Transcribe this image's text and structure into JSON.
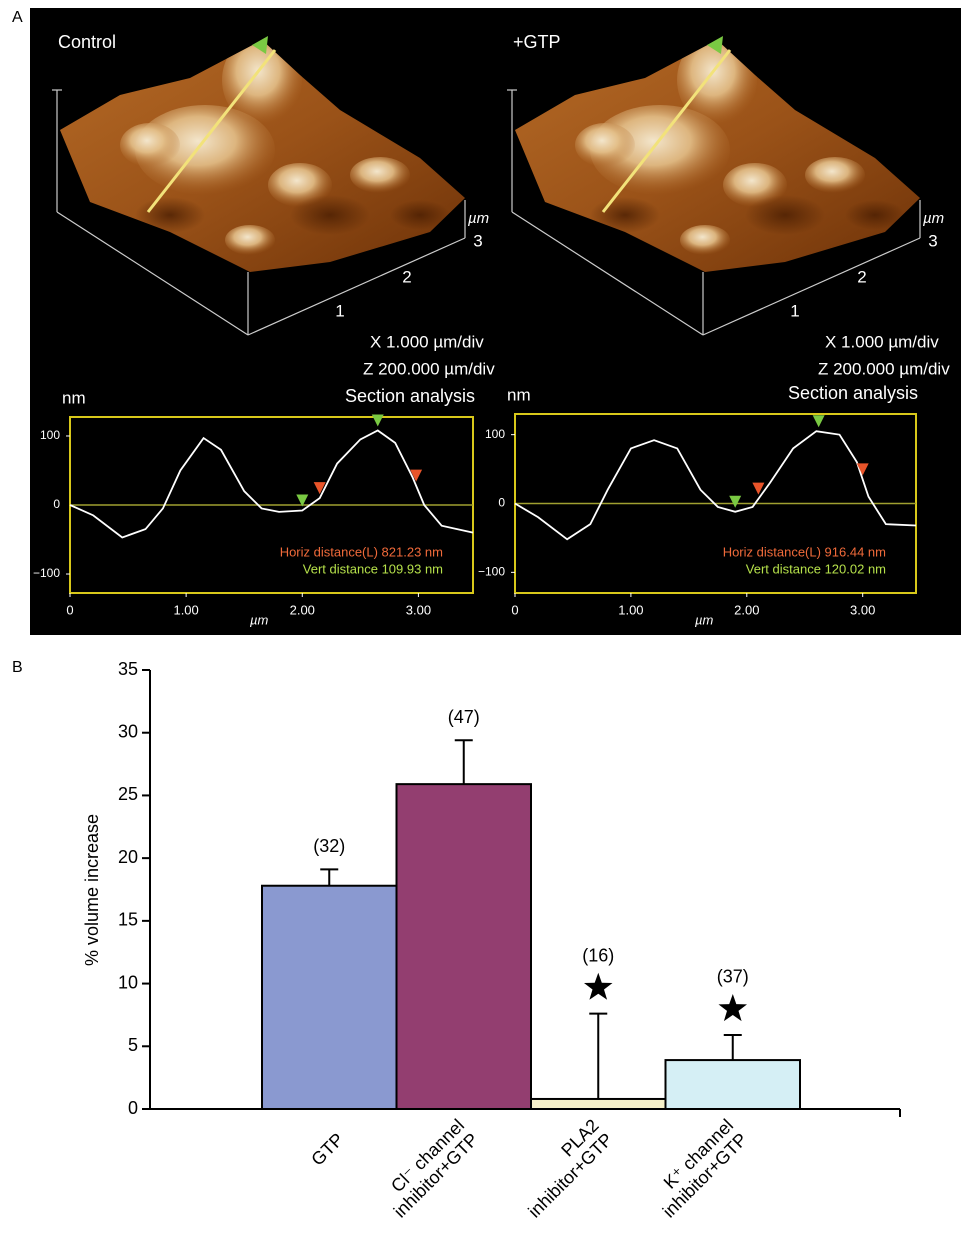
{
  "panel_labels": [
    "A",
    "B"
  ],
  "afm_images": [
    {
      "label": "Control",
      "axis_unit": "µm",
      "axis_ticks": [
        "1",
        "2",
        "3"
      ],
      "scale_x": "X 1.000 µm/div",
      "scale_z": "Z 200.000 µm/div"
    },
    {
      "label": "+GTP",
      "axis_unit": "µm",
      "axis_ticks": [
        "1",
        "2",
        "3"
      ],
      "scale_x": "X 1.000 µm/div",
      "scale_z": "Z 200.000 µm/div"
    }
  ],
  "chart_data": [
    {
      "type": "line",
      "title": "Section analysis",
      "ylabel": "nm",
      "xlabel": "µm",
      "color": "#ffffff",
      "x": [
        0,
        0.2,
        0.45,
        0.65,
        0.8,
        0.95,
        1.15,
        1.3,
        1.5,
        1.65,
        1.8,
        2.0,
        2.15,
        2.3,
        2.5,
        2.65,
        2.8,
        2.95,
        3.05,
        3.2,
        3.47
      ],
      "values": [
        0,
        -15,
        -47,
        -35,
        -5,
        50,
        97,
        80,
        20,
        -5,
        -10,
        -8,
        10,
        60,
        95,
        108,
        90,
        40,
        0,
        -30,
        -40
      ],
      "xlim": [
        0,
        3.47
      ],
      "ylim": [
        -127.5,
        127.5
      ],
      "xticks": [
        0,
        {
          "value": 1,
          "label": "1.00"
        },
        {
          "value": 2,
          "label": "2.00"
        },
        {
          "value": 3,
          "label": "3.00"
        }
      ],
      "yticks": [
        {
          "value": -100,
          "label": "−100"
        },
        0,
        100
      ],
      "frame_color": "#d8c81a",
      "zero_line_color": "#a0a030",
      "markers": {
        "x": [
          2.0,
          2.65,
          2.15,
          2.98
        ],
        "y": [
          -8,
          108,
          10,
          28
        ],
        "colors": [
          "#7ac943",
          "#7ac943",
          "#e8542a",
          "#e8542a"
        ]
      },
      "annotations": [
        {
          "text": "Horiz distance(L) 821.23 nm",
          "color": "#f06a3a"
        },
        {
          "text": "Vert distance 109.93 nm",
          "color": "#b5e04a"
        }
      ]
    },
    {
      "type": "line",
      "title": "Section analysis",
      "ylabel": "nm",
      "xlabel": "µm",
      "color": "#ffffff",
      "x": [
        0,
        0.2,
        0.45,
        0.65,
        0.8,
        1.0,
        1.2,
        1.4,
        1.6,
        1.75,
        1.9,
        2.05,
        2.2,
        2.4,
        2.6,
        2.8,
        2.95,
        3.05,
        3.2,
        3.46
      ],
      "values": [
        0,
        -20,
        -52,
        -30,
        20,
        80,
        92,
        80,
        20,
        -5,
        -12,
        -5,
        30,
        80,
        105,
        100,
        60,
        10,
        -30,
        -32
      ],
      "xlim": [
        0,
        3.46
      ],
      "ylim": [
        -130,
        130
      ],
      "xticks": [
        0,
        {
          "value": 1,
          "label": "1.00"
        },
        {
          "value": 2,
          "label": "2.00"
        },
        {
          "value": 3,
          "label": "3.00"
        }
      ],
      "yticks": [
        {
          "value": -100,
          "label": "−100"
        },
        0,
        100
      ],
      "frame_color": "#d8c81a",
      "zero_line_color": "#a0a030",
      "markers": {
        "x": [
          1.9,
          2.62,
          2.1,
          3.0
        ],
        "y": [
          -12,
          105,
          7,
          35
        ],
        "colors": [
          "#7ac943",
          "#7ac943",
          "#e8542a",
          "#e8542a"
        ]
      },
      "annotations": [
        {
          "text": "Horiz distance(L) 916.44 nm",
          "color": "#f06a3a"
        },
        {
          "text": "Vert distance 120.02 nm",
          "color": "#b5e04a"
        }
      ]
    },
    {
      "type": "bar",
      "ylabel": "% volume increase",
      "categories": [
        "GTP",
        "Cl⁻ channel\ninhibitor+GTP",
        "PLA2\ninhibitor+GTP",
        "K⁺ channel\ninhibitor+GTP"
      ],
      "values": [
        17.8,
        25.9,
        0.8,
        3.9
      ],
      "errors": [
        1.3,
        3.5,
        6.8,
        2.0
      ],
      "n_labels": [
        "(32)",
        "(47)",
        "(16)",
        "(37)"
      ],
      "significant": [
        false,
        false,
        true,
        true
      ],
      "colors": [
        "#8a99d0",
        "#933e70",
        "#f6f0c8",
        "#d5eff5"
      ],
      "ylim": [
        0,
        35
      ],
      "yticks": [
        0,
        5,
        10,
        15,
        20,
        25,
        30,
        35
      ]
    }
  ]
}
